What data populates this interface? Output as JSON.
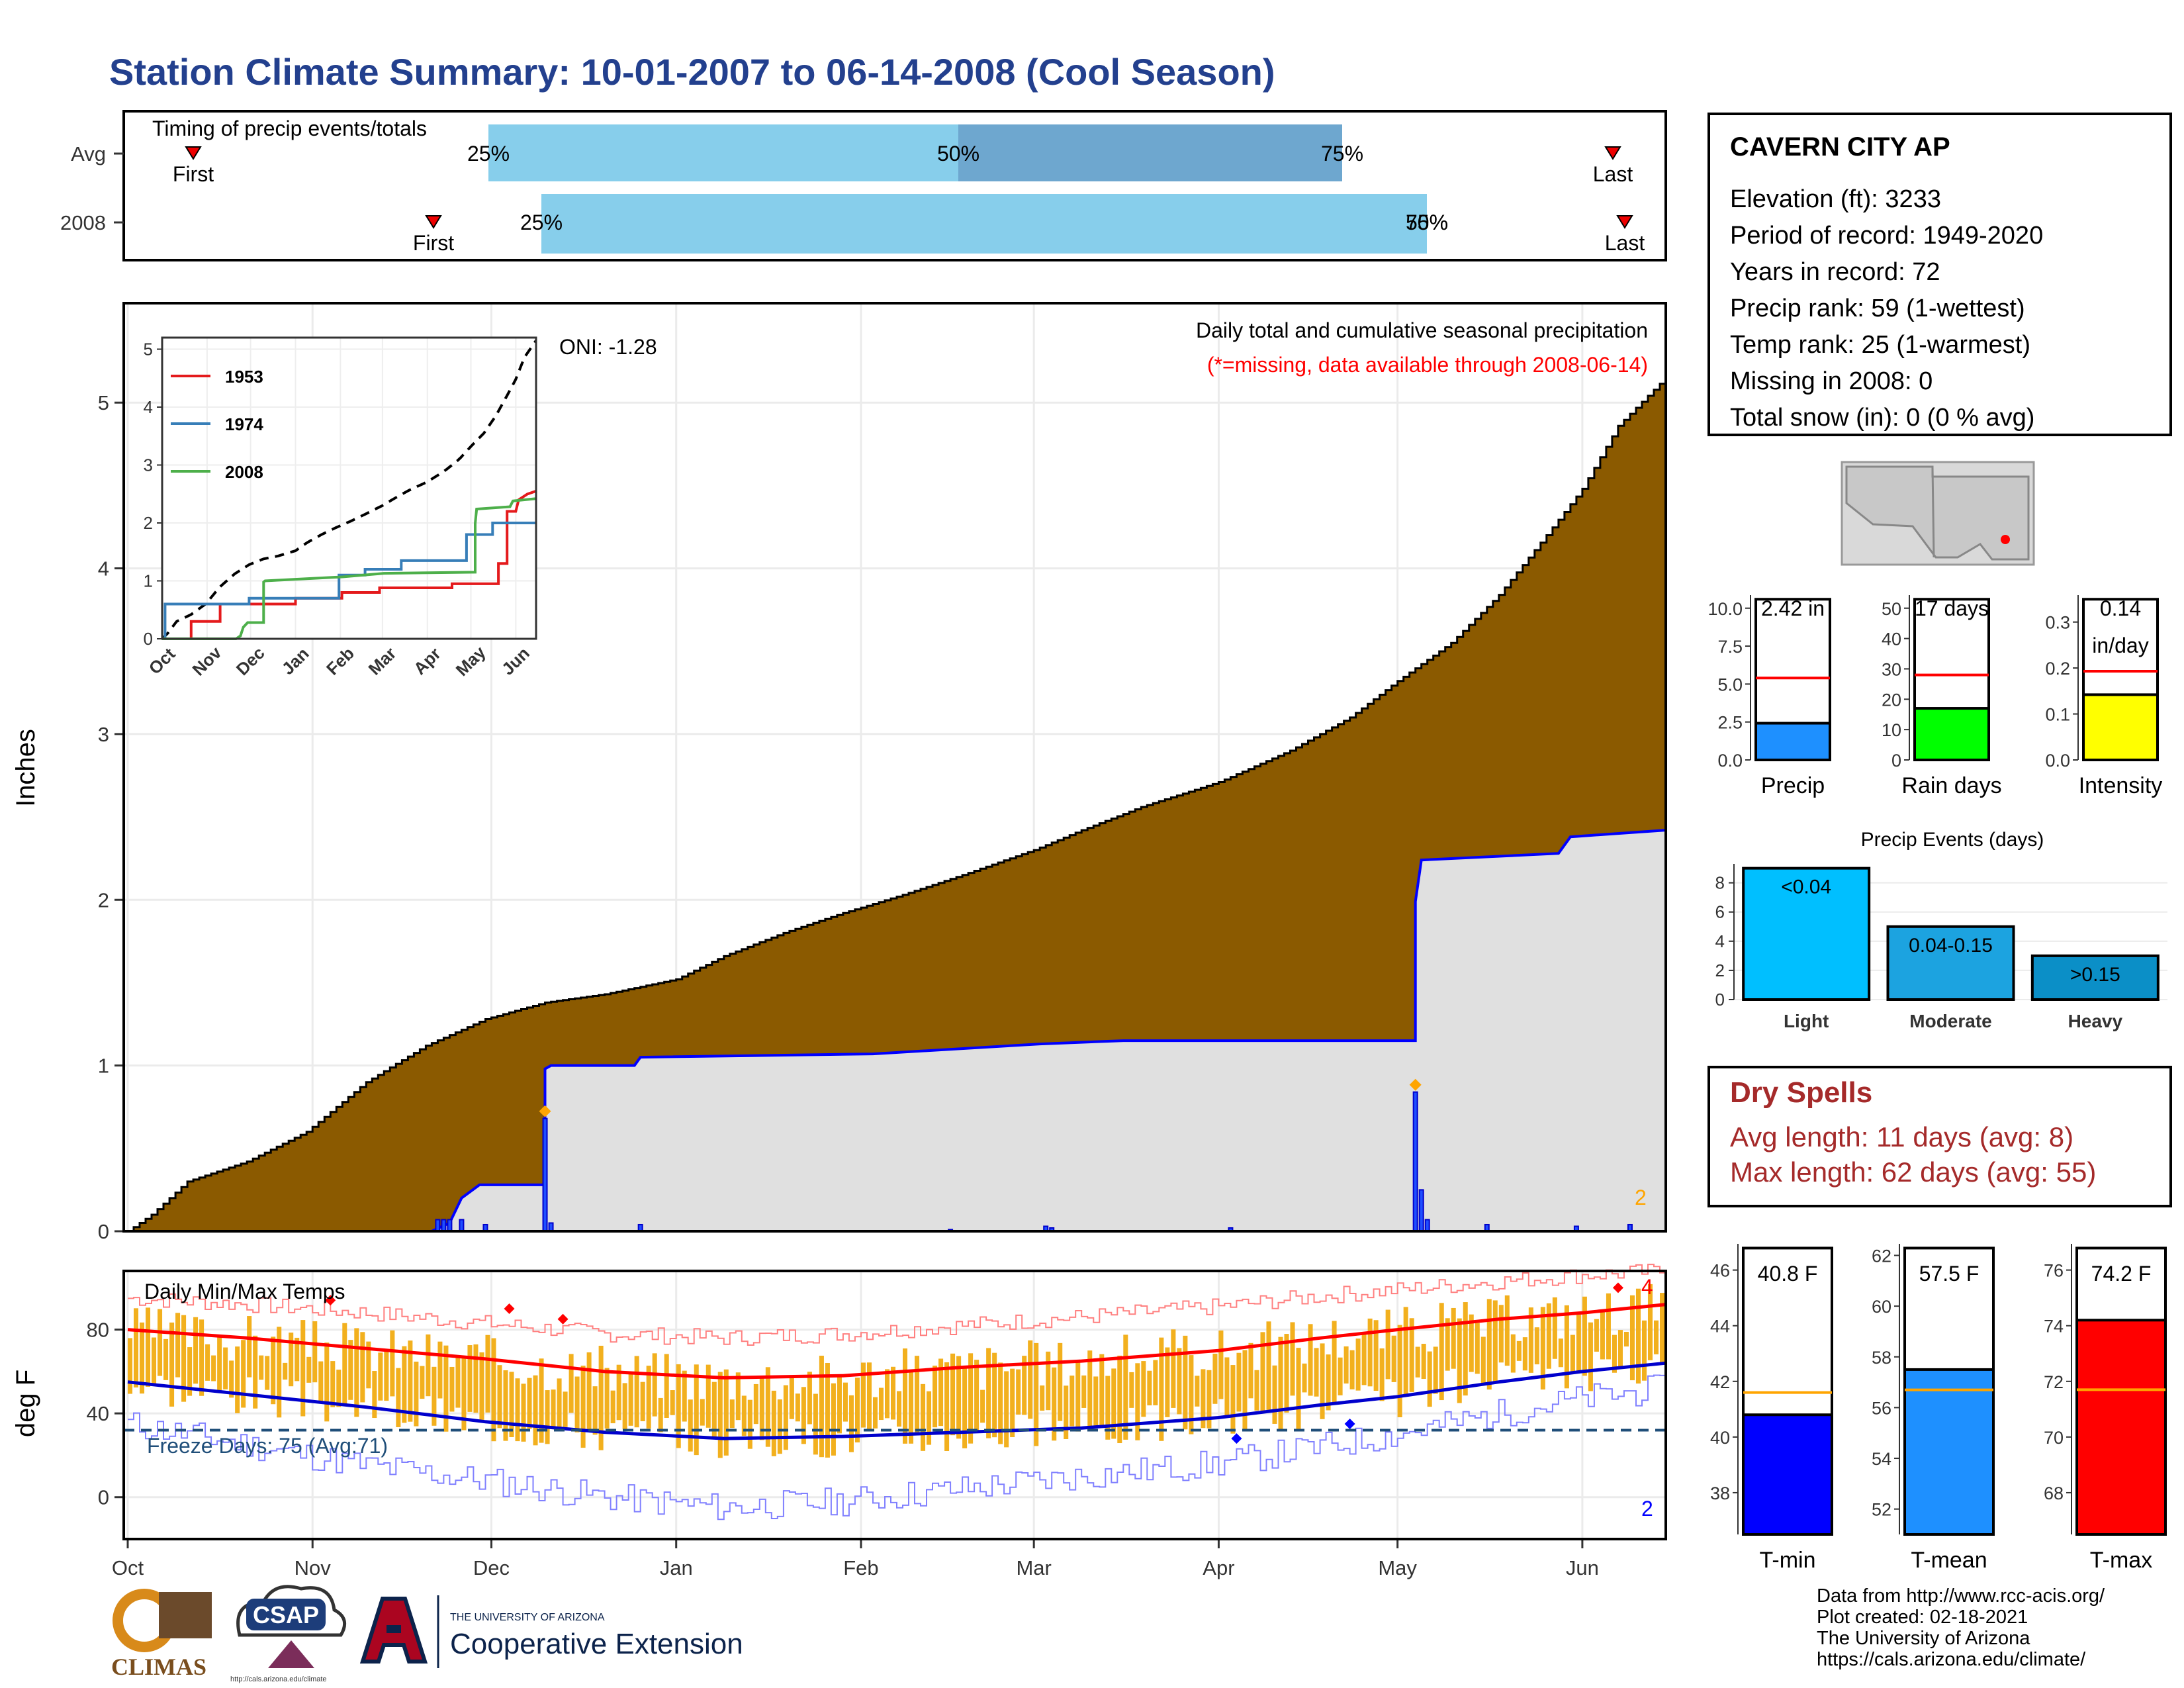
{
  "page": {
    "title": "Station Climate Summary: 10-01-2007 to 06-14-2008 (Cool Season)",
    "credits": [
      "Data from http://www.rcc-acis.org/",
      "Plot created: 02-18-2021",
      "The University of Arizona",
      "https://cals.arizona.edu/climate/"
    ],
    "logos": {
      "climas": "CLIMAS",
      "csap": "CSAP",
      "csap_url": "http://cals.arizona.edu/climate",
      "ua_small": "THE UNIVERSITY OF ARIZONA",
      "ua_big": "Cooperative Extension"
    },
    "colors": {
      "title": "#23408e",
      "cumulative_fill": "#8b5a00",
      "season_fill": "#e0e0e0",
      "season_line": "#0000ff",
      "temp_bar": "#f2b01e",
      "tmax_line": "#ff0000",
      "tmin_line": "#0000cc",
      "dry_spells": "#a52a2a"
    }
  },
  "station": {
    "name": "CAVERN CITY AP",
    "lines": [
      "Elevation (ft): 3233",
      "Period of record: 1949-2020",
      "Years in record: 72",
      "Precip rank: 59 (1-wettest)",
      "Temp rank: 25 (1-warmest)",
      "Missing in 2008: 0",
      "Total snow (in): 0 (0 % avg)"
    ]
  },
  "dry_spells": {
    "title": "Dry Spells",
    "avg": "Avg length: 11 days (avg: 8)",
    "max": "Max length: 62 days (avg: 55)"
  },
  "chart_data": [
    {
      "id": "timing",
      "type": "bar",
      "title": "Timing of precip events/totals",
      "rows": [
        {
          "label": "Avg",
          "first": "First",
          "last": "Last",
          "p25": "25%",
          "p50": "50%",
          "p75": "75%"
        },
        {
          "label": "2008",
          "first": "First",
          "last": "Last",
          "p25": "25%",
          "p50": "50%",
          "p75": "75%"
        }
      ]
    },
    {
      "id": "precip",
      "type": "area",
      "ylabel": "Inches",
      "ylim": [
        0,
        5.6
      ],
      "yticks": [
        0,
        1,
        2,
        3,
        4,
        5
      ],
      "months": [
        "Oct",
        "Nov",
        "Dec",
        "Jan",
        "Feb",
        "Mar",
        "Apr",
        "May",
        "Jun"
      ],
      "month_days": [
        0,
        31,
        61,
        92,
        123,
        152,
        183,
        213,
        244
      ],
      "ndays": 258,
      "annotations": [
        "Daily total and cumulative seasonal precipitation",
        "(*=missing, data available through 2008-06-14)",
        "ONI: -1.28",
        "2"
      ],
      "avg_cumulative": [
        [
          0,
          0
        ],
        [
          4,
          0.1
        ],
        [
          10,
          0.3
        ],
        [
          20,
          0.42
        ],
        [
          30,
          0.6
        ],
        [
          40,
          0.9
        ],
        [
          50,
          1.12
        ],
        [
          60,
          1.28
        ],
        [
          70,
          1.38
        ],
        [
          80,
          1.43
        ],
        [
          92,
          1.52
        ],
        [
          100,
          1.66
        ],
        [
          110,
          1.8
        ],
        [
          120,
          1.92
        ],
        [
          130,
          2.03
        ],
        [
          140,
          2.15
        ],
        [
          152,
          2.3
        ],
        [
          160,
          2.42
        ],
        [
          170,
          2.56
        ],
        [
          183,
          2.71
        ],
        [
          195,
          2.9
        ],
        [
          205,
          3.1
        ],
        [
          213,
          3.32
        ],
        [
          222,
          3.55
        ],
        [
          230,
          3.84
        ],
        [
          238,
          4.2
        ],
        [
          244,
          4.48
        ],
        [
          250,
          4.86
        ],
        [
          258,
          5.15
        ]
      ],
      "season_cumulative": [
        [
          0,
          0
        ],
        [
          51,
          0
        ],
        [
          54,
          0.05
        ],
        [
          56,
          0.2
        ],
        [
          59,
          0.28
        ],
        [
          70,
          0.28
        ],
        [
          70,
          0.98
        ],
        [
          71,
          1.0
        ],
        [
          85,
          1.0
        ],
        [
          86,
          1.05
        ],
        [
          125,
          1.07
        ],
        [
          153,
          1.13
        ],
        [
          167,
          1.15
        ],
        [
          216,
          1.15
        ],
        [
          216,
          1.99
        ],
        [
          217,
          2.24
        ],
        [
          240,
          2.28
        ],
        [
          242,
          2.38
        ],
        [
          250,
          2.4
        ],
        [
          258,
          2.42
        ]
      ],
      "daily": [
        [
          52,
          0.07
        ],
        [
          53,
          0.07
        ],
        [
          54,
          0.07
        ],
        [
          56,
          0.07
        ],
        [
          60,
          0.04
        ],
        [
          70,
          0.68
        ],
        [
          71,
          0.05
        ],
        [
          86,
          0.04
        ],
        [
          138,
          0.01
        ],
        [
          154,
          0.03
        ],
        [
          155,
          0.02
        ],
        [
          185,
          0.02
        ],
        [
          216,
          0.84
        ],
        [
          217,
          0.25
        ],
        [
          218,
          0.07
        ],
        [
          228,
          0.04
        ],
        [
          243,
          0.03
        ],
        [
          252,
          0.04
        ]
      ],
      "inset": {
        "months": [
          "Oct",
          "Nov",
          "Dec",
          "Jan",
          "Feb",
          "Mar",
          "Apr",
          "May",
          "Jun"
        ],
        "ylim": [
          0,
          5.2
        ],
        "yticks": [
          0,
          1,
          2,
          3,
          4,
          5
        ],
        "series": [
          {
            "name": "1953",
            "color": "#e41a1c",
            "points": [
              [
                0,
                0
              ],
              [
                20,
                0
              ],
              [
                20,
                0.3
              ],
              [
                40,
                0.3
              ],
              [
                40,
                0.6
              ],
              [
                92,
                0.6
              ],
              [
                92,
                0.7
              ],
              [
                124,
                0.7
              ],
              [
                124,
                0.8
              ],
              [
                150,
                0.8
              ],
              [
                150,
                0.88
              ],
              [
                200,
                0.88
              ],
              [
                200,
                0.95
              ],
              [
                232,
                0.95
              ],
              [
                232,
                1.3
              ],
              [
                238,
                1.3
              ],
              [
                238,
                2.2
              ],
              [
                244,
                2.2
              ],
              [
                246,
                2.4
              ],
              [
                252,
                2.5
              ],
              [
                258,
                2.55
              ]
            ]
          },
          {
            "name": "1974",
            "color": "#377eb8",
            "points": [
              [
                0,
                0
              ],
              [
                2,
                0
              ],
              [
                2,
                0.6
              ],
              [
                60,
                0.6
              ],
              [
                60,
                0.7
              ],
              [
                122,
                0.7
              ],
              [
                122,
                1.1
              ],
              [
                140,
                1.1
              ],
              [
                140,
                1.2
              ],
              [
                165,
                1.2
              ],
              [
                165,
                1.35
              ],
              [
                210,
                1.35
              ],
              [
                210,
                1.8
              ],
              [
                228,
                1.8
              ],
              [
                228,
                2.0
              ],
              [
                258,
                2.0
              ]
            ]
          },
          {
            "name": "2008",
            "color": "#4daf4a",
            "points": [
              [
                0,
                0
              ],
              [
                51,
                0
              ],
              [
                54,
                0.05
              ],
              [
                56,
                0.2
              ],
              [
                59,
                0.28
              ],
              [
                70,
                0.28
              ],
              [
                70,
                0.98
              ],
              [
                71,
                1.0
              ],
              [
                125,
                1.07
              ],
              [
                153,
                1.13
              ],
              [
                216,
                1.15
              ],
              [
                216,
                1.99
              ],
              [
                217,
                2.24
              ],
              [
                240,
                2.28
              ],
              [
                242,
                2.38
              ],
              [
                250,
                2.4
              ],
              [
                258,
                2.42
              ]
            ]
          }
        ],
        "avg_line": {
          "style": "dashed",
          "color": "#000000"
        }
      }
    },
    {
      "id": "stats_precip",
      "type": "bar",
      "panels": [
        {
          "xlabel": "Precip",
          "value": 2.42,
          "label": "2.42 in",
          "avg": 5.4,
          "ylim": [
            0,
            10.6
          ],
          "yticks": [
            "0.0",
            "2.5",
            "5.0",
            "7.5",
            "10.0"
          ],
          "ytick_vals": [
            0,
            2.5,
            5,
            7.5,
            10
          ],
          "color": "#1e90ff"
        },
        {
          "xlabel": "Rain days",
          "value": 17,
          "label": "17 days",
          "avg": 28,
          "ylim": [
            0,
            53
          ],
          "yticks": [
            "0",
            "10",
            "20",
            "30",
            "40",
            "50"
          ],
          "ytick_vals": [
            0,
            10,
            20,
            30,
            40,
            50
          ],
          "color": "#00ff00"
        },
        {
          "xlabel": "Intensity",
          "value": 0.142,
          "label": "0.14",
          "label2": "in/day",
          "avg": 0.193,
          "ylim": [
            0,
            0.35
          ],
          "yticks": [
            "0.0",
            "0.1",
            "0.2",
            "0.3"
          ],
          "ytick_vals": [
            0,
            0.1,
            0.2,
            0.3
          ],
          "color": "#ffff00"
        }
      ]
    },
    {
      "id": "precip_events",
      "type": "bar",
      "title": "Precip Events (days)",
      "categories": [
        "Light",
        "Moderate",
        "Heavy"
      ],
      "bar_labels": [
        "<0.04",
        "0.04-0.15",
        ">0.15"
      ],
      "values": [
        9,
        5,
        3
      ],
      "colors": [
        "#00bfff",
        "#1ca3e0",
        "#0b8fc7"
      ],
      "ylim": [
        0,
        9.3
      ],
      "yticks": [
        0,
        2,
        4,
        6,
        8
      ]
    },
    {
      "id": "temps",
      "type": "line",
      "title": "Daily Min/Max Temps",
      "ylabel": "deg F",
      "ylim": [
        -20,
        108
      ],
      "yticks": [
        0,
        40,
        80
      ],
      "freeze_label": "Freeze Days: 75 (Avg:71)",
      "freeze_temp": 32,
      "annotations": [
        "4",
        "2"
      ],
      "tmax_avg": [
        [
          0,
          80
        ],
        [
          20,
          76
        ],
        [
          40,
          71
        ],
        [
          60,
          66
        ],
        [
          80,
          60
        ],
        [
          100,
          57
        ],
        [
          120,
          58
        ],
        [
          140,
          62
        ],
        [
          160,
          65
        ],
        [
          183,
          70
        ],
        [
          200,
          76
        ],
        [
          213,
          80
        ],
        [
          230,
          85
        ],
        [
          244,
          88
        ],
        [
          258,
          92
        ]
      ],
      "tmin_avg": [
        [
          0,
          55
        ],
        [
          20,
          49
        ],
        [
          40,
          43
        ],
        [
          60,
          36
        ],
        [
          80,
          31
        ],
        [
          100,
          28
        ],
        [
          120,
          29
        ],
        [
          140,
          31
        ],
        [
          160,
          33
        ],
        [
          183,
          38
        ],
        [
          200,
          44
        ],
        [
          213,
          48
        ],
        [
          230,
          55
        ],
        [
          244,
          60
        ],
        [
          258,
          64
        ]
      ],
      "tmax_record": [
        [
          0,
          95
        ],
        [
          20,
          92
        ],
        [
          40,
          88
        ],
        [
          60,
          83
        ],
        [
          80,
          78
        ],
        [
          100,
          76
        ],
        [
          120,
          78
        ],
        [
          140,
          82
        ],
        [
          160,
          86
        ],
        [
          183,
          91
        ],
        [
          200,
          96
        ],
        [
          213,
          99
        ],
        [
          230,
          103
        ],
        [
          244,
          106
        ],
        [
          258,
          108
        ]
      ],
      "tmin_record": [
        [
          0,
          35
        ],
        [
          20,
          25
        ],
        [
          40,
          15
        ],
        [
          60,
          8
        ],
        [
          80,
          0
        ],
        [
          100,
          -5
        ],
        [
          120,
          -2
        ],
        [
          140,
          4
        ],
        [
          160,
          10
        ],
        [
          183,
          16
        ],
        [
          200,
          24
        ],
        [
          213,
          30
        ],
        [
          230,
          40
        ],
        [
          244,
          47
        ],
        [
          258,
          52
        ]
      ]
    },
    {
      "id": "stats_temp",
      "type": "bar",
      "panels": [
        {
          "xlabel": "T-min",
          "value": 40.8,
          "label": "40.8 F",
          "avg": 41.6,
          "ylim": [
            36.5,
            46.8
          ],
          "yticks": [
            "38",
            "40",
            "42",
            "44",
            "46"
          ],
          "ytick_vals": [
            38,
            40,
            42,
            44,
            46
          ],
          "color": "#0000ff"
        },
        {
          "xlabel": "T-mean",
          "value": 57.5,
          "label": "57.5 F",
          "avg": 56.7,
          "ylim": [
            51,
            62.3
          ],
          "yticks": [
            "52",
            "54",
            "56",
            "58",
            "60",
            "62"
          ],
          "ytick_vals": [
            52,
            54,
            56,
            58,
            60,
            62
          ],
          "color": "#1e90ff"
        },
        {
          "xlabel": "T-max",
          "value": 74.2,
          "label": "74.2 F",
          "avg": 71.7,
          "ylim": [
            66.5,
            76.8
          ],
          "yticks": [
            "68",
            "70",
            "72",
            "74",
            "76"
          ],
          "ytick_vals": [
            68,
            70,
            72,
            74,
            76
          ],
          "color": "#ff0000"
        }
      ]
    }
  ]
}
